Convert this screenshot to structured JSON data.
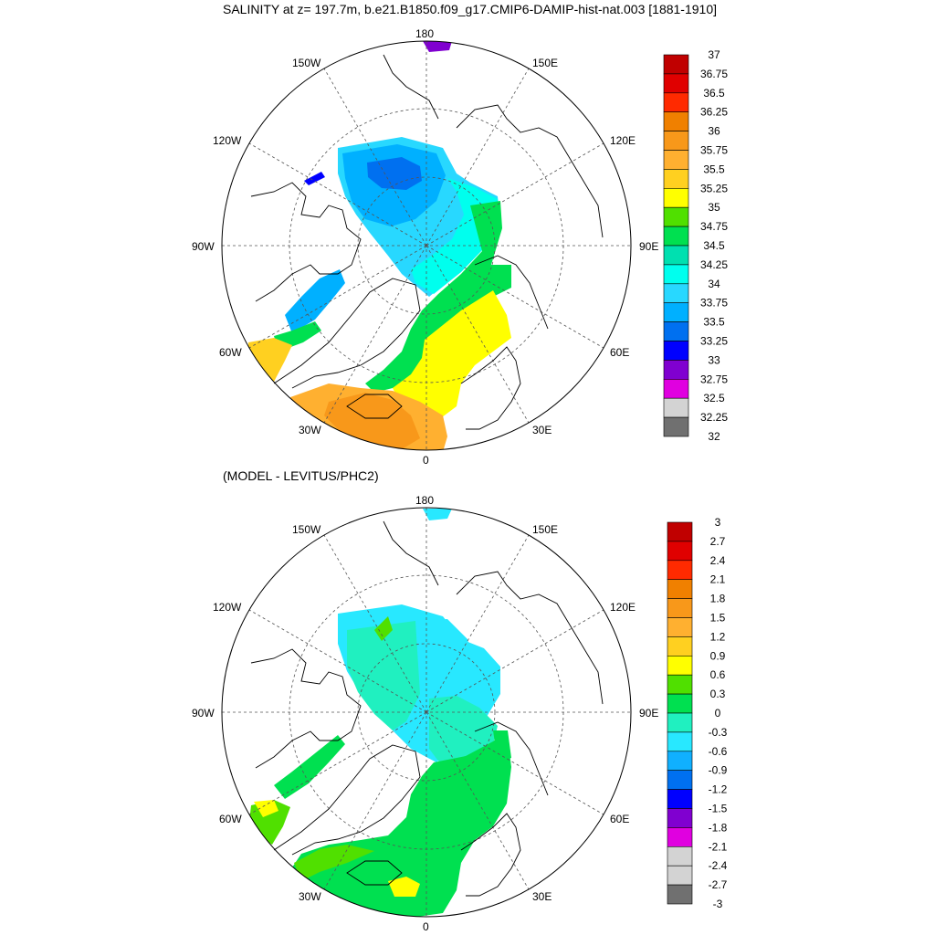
{
  "top_panel": {
    "title": "SALINITY at z= 197.7m, b.e21.B1850.f09_g17.CMIP6-DAMIP-hist-nat.003 [1881-1910]",
    "lon_labels": {
      "n": "180",
      "s": "0",
      "w": "90W",
      "e": "90E",
      "nw": "150W",
      "ne": "150E",
      "wnw": "120W",
      "ene": "120E",
      "wsw": "60W",
      "ese": "60E",
      "sw": "30W",
      "se": "30E"
    },
    "colorbar": {
      "labels": [
        "37",
        "36.75",
        "36.5",
        "36.25",
        "36",
        "35.75",
        "35.5",
        "35.25",
        "35",
        "34.75",
        "34.5",
        "34.25",
        "34",
        "33.75",
        "33.5",
        "33.25",
        "33",
        "32.75",
        "32.5",
        "32.25",
        "32"
      ],
      "colors": [
        "#c00000",
        "#e00000",
        "#ff2a00",
        "#f08000",
        "#f8981a",
        "#ffb030",
        "#ffd020",
        "#ffff00",
        "#50e000",
        "#00e050",
        "#00e0b0",
        "#00ffee",
        "#28d8ff",
        "#00b0ff",
        "#0070f0",
        "#0000ff",
        "#8000d0",
        "#e000e0",
        "#d3d3d3",
        "#707070"
      ]
    }
  },
  "bottom_panel": {
    "title": "(MODEL - LEVITUS/PHC2)",
    "lon_labels": {
      "n": "180",
      "s": "0",
      "w": "90W",
      "e": "90E",
      "nw": "150W",
      "ne": "150E",
      "wnw": "120W",
      "ene": "120E",
      "wsw": "60W",
      "ese": "60E",
      "sw": "30W",
      "se": "30E"
    },
    "colorbar": {
      "labels": [
        "3",
        "2.7",
        "2.4",
        "2.1",
        "1.8",
        "1.5",
        "1.2",
        "0.9",
        "0.6",
        "0.3",
        "0",
        "-0.3",
        "-0.6",
        "-0.9",
        "-1.2",
        "-1.5",
        "-1.8",
        "-2.1",
        "-2.4",
        "-2.7",
        "-3"
      ],
      "colors": [
        "#c00000",
        "#e00000",
        "#ff2a00",
        "#f08000",
        "#f8981a",
        "#ffb030",
        "#ffd020",
        "#ffff00",
        "#50e000",
        "#00e050",
        "#20f0c0",
        "#28e8ff",
        "#10b0ff",
        "#0070f0",
        "#0000ff",
        "#8000d0",
        "#e000e0",
        "#d3d3d3",
        "#d3d3d3",
        "#707070"
      ]
    }
  }
}
